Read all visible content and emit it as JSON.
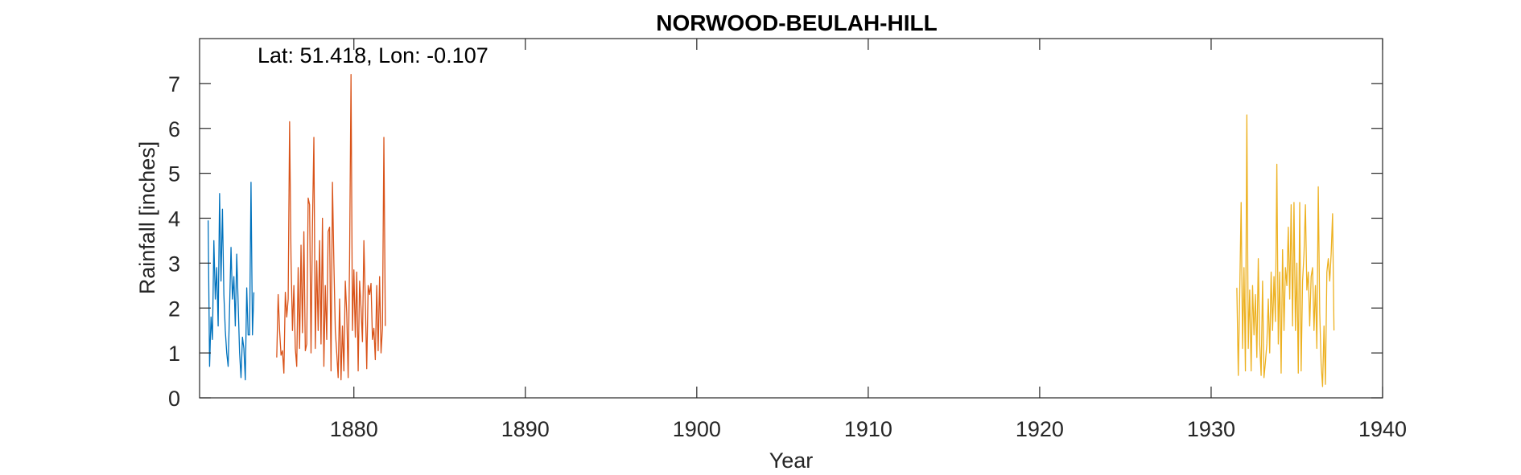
{
  "chart_data": {
    "type": "line",
    "title": "NORWOOD-BEULAH-HILL",
    "annotation": "Lat: 51.418, Lon: -0.107",
    "xlabel": "Year",
    "ylabel": "Rainfall [inches]",
    "xlim": [
      1871,
      1940
    ],
    "ylim": [
      0,
      8
    ],
    "xticks": [
      1880,
      1890,
      1900,
      1910,
      1920,
      1930,
      1940
    ],
    "yticks": [
      0,
      1,
      2,
      3,
      4,
      5,
      6,
      7
    ],
    "grid": false,
    "series": [
      {
        "color": "#0072BD",
        "x_start": 1871.5,
        "x_step": 0.08333,
        "values": [
          3.95,
          0.7,
          1.8,
          1.3,
          3.5,
          2.2,
          2.9,
          1.6,
          4.55,
          2.6,
          4.2,
          2.3,
          1.5,
          1.0,
          0.7,
          2.0,
          3.35,
          2.2,
          2.7,
          1.6,
          3.2,
          2.1,
          1.0,
          0.45,
          1.35,
          1.1,
          0.4,
          2.45,
          1.4,
          1.4,
          4.8,
          1.4,
          2.35
        ]
      },
      {
        "color": "#D95319",
        "x_start": 1875.5,
        "x_step": 0.08333,
        "values": [
          0.9,
          2.3,
          1.5,
          0.95,
          1.05,
          0.55,
          2.35,
          1.8,
          2.2,
          6.15,
          3.1,
          1.5,
          2.5,
          1.1,
          0.7,
          2.9,
          1.1,
          3.4,
          1.45,
          3.7,
          1.05,
          1.2,
          4.45,
          4.3,
          1.0,
          3.8,
          5.8,
          1.1,
          3.05,
          1.5,
          3.5,
          1.2,
          4.0,
          0.7,
          2.5,
          1.3,
          3.7,
          3.8,
          0.6,
          4.8,
          3.0,
          1.5,
          1.0,
          0.45,
          2.2,
          0.4,
          1.6,
          0.6,
          2.6,
          1.9,
          0.45,
          3.1,
          7.2,
          1.5,
          2.85,
          1.35,
          2.8,
          0.6,
          2.6,
          2.0,
          1.25,
          3.5,
          2.15,
          0.65,
          2.5,
          2.3,
          2.55,
          1.3,
          1.55,
          0.85,
          2.5,
          1.05,
          2.7,
          1.0,
          1.55,
          5.8,
          1.6
        ]
      },
      {
        "color": "#EDB120",
        "x_start": 1931.5,
        "x_step": 0.08333,
        "values": [
          2.45,
          0.5,
          2.3,
          4.35,
          1.1,
          2.9,
          0.6,
          6.3,
          1.1,
          2.4,
          0.6,
          2.5,
          1.4,
          2.3,
          0.9,
          3.1,
          1.2,
          0.5,
          2.6,
          0.45,
          0.8,
          1.2,
          2.2,
          1.0,
          2.8,
          1.5,
          2.7,
          1.7,
          5.2,
          1.2,
          2.8,
          0.55,
          3.3,
          1.5,
          2.9,
          2.5,
          3.8,
          2.2,
          4.3,
          1.6,
          4.35,
          1.5,
          3.0,
          0.55,
          4.35,
          0.6,
          2.6,
          3.2,
          4.3,
          2.4,
          2.8,
          1.6,
          2.7,
          2.9,
          1.5,
          2.5,
          1.1,
          4.7,
          1.9,
          0.75,
          0.25,
          1.6,
          0.3,
          2.8,
          3.1,
          2.6,
          3.2,
          4.1,
          1.5
        ]
      }
    ]
  }
}
